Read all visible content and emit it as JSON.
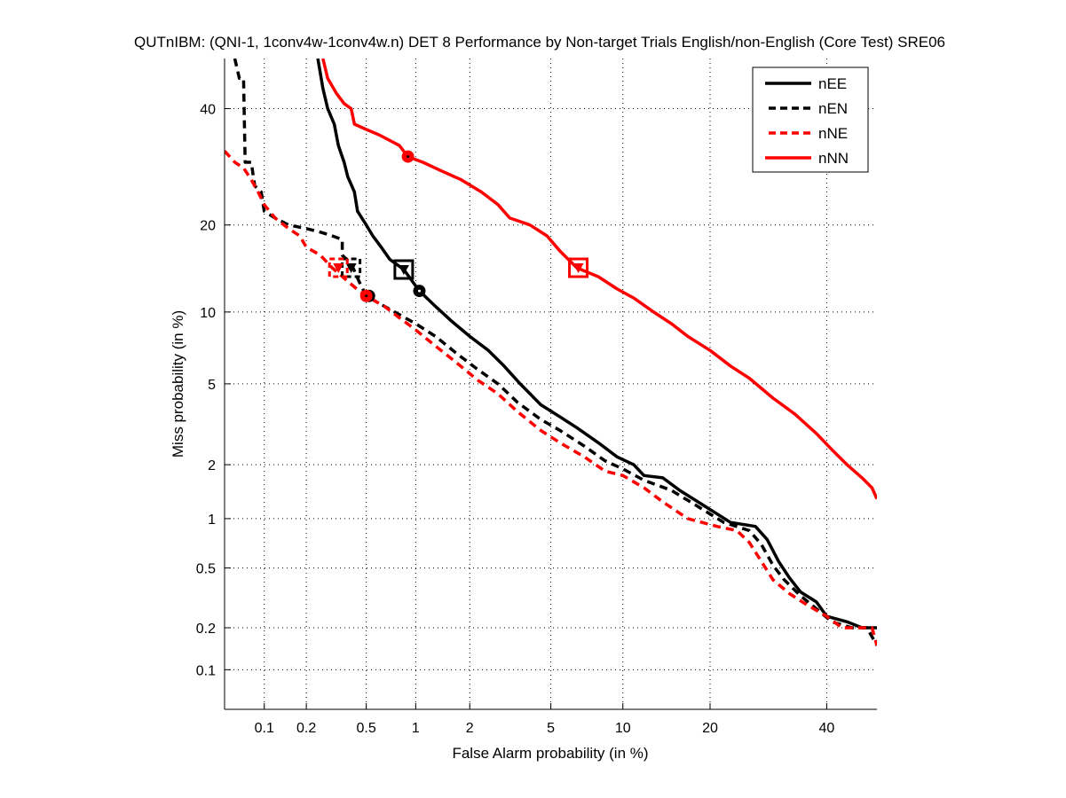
{
  "chart_data": {
    "type": "line",
    "title": "QUTnIBM: (QNI-1, 1conv4w-1conv4w.n) DET 8 Performance by Non-target Trials English/non-English (Core Test) SRE06",
    "xlabel": "False Alarm probability (in %)",
    "ylabel": "Miss probability (in %)",
    "xscale": "normal-deviate",
    "yscale": "normal-deviate",
    "xlim": [
      0.05,
      50
    ],
    "ylim": [
      0.05,
      50
    ],
    "grid": true,
    "xticks": [
      0.1,
      0.2,
      0.5,
      1,
      2,
      5,
      10,
      20,
      40
    ],
    "xtick_labels": [
      "0.1",
      "0.2",
      "0.5",
      "1",
      "2",
      "5",
      "10",
      "20",
      "40"
    ],
    "yticks": [
      0.1,
      0.2,
      0.5,
      1,
      2,
      5,
      10,
      20,
      40
    ],
    "ytick_labels": [
      "0.1",
      "0.2",
      "0.5",
      "1",
      "2",
      "5",
      "10",
      "20",
      "40"
    ],
    "legend_position": "top-right",
    "series": [
      {
        "name": "nEE",
        "color": "#000000",
        "dash": "solid",
        "points": [
          [
            0.24,
            50
          ],
          [
            0.26,
            44
          ],
          [
            0.28,
            40
          ],
          [
            0.31,
            37
          ],
          [
            0.33,
            33
          ],
          [
            0.36,
            30
          ],
          [
            0.38,
            27.5
          ],
          [
            0.42,
            25
          ],
          [
            0.44,
            22
          ],
          [
            0.5,
            20
          ],
          [
            0.55,
            18.5
          ],
          [
            0.62,
            17
          ],
          [
            0.7,
            15.5
          ],
          [
            0.85,
            14.3
          ],
          [
            1.05,
            12
          ],
          [
            1.3,
            10.5
          ],
          [
            1.6,
            9.2
          ],
          [
            2.0,
            8
          ],
          [
            2.5,
            7
          ],
          [
            3.0,
            6
          ],
          [
            3.6,
            5
          ],
          [
            4.5,
            4
          ],
          [
            5.5,
            3.5
          ],
          [
            6.5,
            3.1
          ],
          [
            8,
            2.6
          ],
          [
            9.5,
            2.2
          ],
          [
            11,
            2.0
          ],
          [
            12,
            1.75
          ],
          [
            14,
            1.7
          ],
          [
            16,
            1.45
          ],
          [
            19,
            1.2
          ],
          [
            23,
            0.95
          ],
          [
            27,
            0.9
          ],
          [
            29,
            0.75
          ],
          [
            31,
            0.55
          ],
          [
            33,
            0.43
          ],
          [
            35,
            0.35
          ],
          [
            38,
            0.3
          ],
          [
            40,
            0.24
          ],
          [
            44,
            0.22
          ],
          [
            47,
            0.2
          ],
          [
            50,
            0.2
          ]
        ],
        "markers": {
          "actual_dcf": [
            0.85,
            14.3
          ],
          "min_dcf": [
            1.05,
            12
          ]
        }
      },
      {
        "name": "nEN",
        "color": "#000000",
        "dash": "dashed",
        "points": [
          [
            0.06,
            50
          ],
          [
            0.065,
            46
          ],
          [
            0.07,
            46
          ],
          [
            0.072,
            30
          ],
          [
            0.08,
            30
          ],
          [
            0.085,
            26
          ],
          [
            0.095,
            25
          ],
          [
            0.1,
            22
          ],
          [
            0.12,
            21
          ],
          [
            0.15,
            20
          ],
          [
            0.2,
            19.5
          ],
          [
            0.25,
            19
          ],
          [
            0.3,
            18.5
          ],
          [
            0.35,
            18
          ],
          [
            0.35,
            16
          ],
          [
            0.4,
            15
          ],
          [
            0.45,
            13
          ],
          [
            0.5,
            11.5
          ],
          [
            0.6,
            10.8
          ],
          [
            0.75,
            10
          ],
          [
            1.0,
            9.0
          ],
          [
            1.3,
            8
          ],
          [
            1.7,
            6.8
          ],
          [
            2.2,
            5.8
          ],
          [
            2.8,
            5
          ],
          [
            3.5,
            4.1
          ],
          [
            4.5,
            3.4
          ],
          [
            5.5,
            3.0
          ],
          [
            7,
            2.5
          ],
          [
            8.5,
            2.1
          ],
          [
            10,
            1.9
          ],
          [
            12,
            1.65
          ],
          [
            15,
            1.45
          ],
          [
            18,
            1.2
          ],
          [
            22,
            0.95
          ],
          [
            26,
            0.85
          ],
          [
            28,
            0.7
          ],
          [
            30,
            0.52
          ],
          [
            32,
            0.42
          ],
          [
            35,
            0.33
          ],
          [
            38,
            0.27
          ],
          [
            41,
            0.22
          ],
          [
            45,
            0.2
          ],
          [
            48,
            0.2
          ],
          [
            50,
            0.15
          ]
        ],
        "markers": {
          "actual_dcf": [
            0.4,
            14.5
          ],
          "min_dcf": [
            0.52,
            11.5
          ]
        }
      },
      {
        "name": "nNE",
        "color": "#FF0000",
        "dash": "dashed",
        "points": [
          [
            0.05,
            32
          ],
          [
            0.06,
            30
          ],
          [
            0.07,
            29
          ],
          [
            0.08,
            27
          ],
          [
            0.09,
            25
          ],
          [
            0.1,
            23
          ],
          [
            0.12,
            21
          ],
          [
            0.15,
            19.5
          ],
          [
            0.18,
            18.5
          ],
          [
            0.2,
            17
          ],
          [
            0.25,
            16
          ],
          [
            0.3,
            14.5
          ],
          [
            0.38,
            13
          ],
          [
            0.45,
            12
          ],
          [
            0.5,
            11.5
          ],
          [
            0.65,
            10.5
          ],
          [
            0.8,
            9.5
          ],
          [
            1.0,
            8.5
          ],
          [
            1.3,
            7.3
          ],
          [
            1.7,
            6.2
          ],
          [
            2.2,
            5.2
          ],
          [
            2.8,
            4.5
          ],
          [
            3.5,
            3.7
          ],
          [
            4.5,
            3.0
          ],
          [
            5.5,
            2.6
          ],
          [
            7,
            2.2
          ],
          [
            8.5,
            1.85
          ],
          [
            10,
            1.75
          ],
          [
            12,
            1.5
          ],
          [
            14,
            1.25
          ],
          [
            17,
            1.0
          ],
          [
            21,
            0.9
          ],
          [
            24,
            0.85
          ],
          [
            26,
            0.72
          ],
          [
            28,
            0.55
          ],
          [
            30,
            0.42
          ],
          [
            33,
            0.34
          ],
          [
            36,
            0.29
          ],
          [
            40,
            0.24
          ],
          [
            43,
            0.2
          ],
          [
            47,
            0.2
          ],
          [
            49,
            0.2
          ],
          [
            50,
            0.15
          ]
        ],
        "markers": {
          "actual_dcf": [
            0.33,
            14.5
          ],
          "min_dcf": [
            0.5,
            11.5
          ]
        }
      },
      {
        "name": "nNN",
        "color": "#FF0000",
        "dash": "solid",
        "points": [
          [
            0.26,
            50
          ],
          [
            0.28,
            46
          ],
          [
            0.32,
            43
          ],
          [
            0.36,
            41
          ],
          [
            0.4,
            40
          ],
          [
            0.42,
            37
          ],
          [
            0.5,
            36
          ],
          [
            0.6,
            35
          ],
          [
            0.8,
            33
          ],
          [
            0.9,
            31
          ],
          [
            1.1,
            30
          ],
          [
            1.4,
            28.5
          ],
          [
            1.8,
            27
          ],
          [
            2.3,
            25
          ],
          [
            2.8,
            23
          ],
          [
            3.2,
            21
          ],
          [
            4,
            20
          ],
          [
            4.8,
            18.5
          ],
          [
            5.5,
            16.5
          ],
          [
            6.5,
            14.5
          ],
          [
            8,
            13.5
          ],
          [
            9.5,
            12.2
          ],
          [
            11,
            11.3
          ],
          [
            13,
            10
          ],
          [
            15,
            9
          ],
          [
            17,
            8
          ],
          [
            20,
            7
          ],
          [
            23,
            6
          ],
          [
            26,
            5.3
          ],
          [
            30,
            4.3
          ],
          [
            34,
            3.6
          ],
          [
            38,
            2.9
          ],
          [
            41,
            2.4
          ],
          [
            44,
            2.0
          ],
          [
            47,
            1.7
          ],
          [
            49,
            1.5
          ],
          [
            50,
            1.3
          ]
        ],
        "markers": {
          "actual_dcf": [
            6.6,
            14.5
          ],
          "min_dcf": [
            0.9,
            31
          ]
        }
      }
    ]
  }
}
